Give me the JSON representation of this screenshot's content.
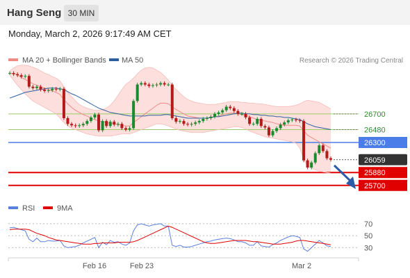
{
  "header": {
    "title": "Hang Seng",
    "timeframe": "30 MIN",
    "datetime": "Monday, March 2, 2026 9:17:49 AM CET"
  },
  "legend": {
    "bollinger": "MA 20 + Bollinger Bands",
    "ma50": "MA 50",
    "credit": "Research © 2026 Trading Central"
  },
  "rsi_legend": {
    "rsi": "RSI",
    "ma": "9MA"
  },
  "colors": {
    "bollinger": "#f08a85",
    "band_fill": "#fde0dd",
    "ma50": "#2e5e9e",
    "up": "#1b8a2e",
    "down": "#b31b1b",
    "resistance": "#9ccc65",
    "pivot": "#4a7de8",
    "support": "#e00000",
    "current": "#333333",
    "arrow": "#2b5aa8"
  },
  "chart_data": [
    {
      "type": "line",
      "title": "Hang Seng",
      "timeframe": "30 MIN",
      "ylim": [
        25620,
        27320
      ],
      "x_ticks": [
        "Feb 16",
        "Feb 23",
        "Mar 2"
      ],
      "levels": [
        {
          "value": 26700,
          "label": "26700",
          "kind": "resistance"
        },
        {
          "value": 26480,
          "label": "26480",
          "kind": "resistance"
        },
        {
          "value": 26300,
          "label": "26300",
          "kind": "pivot"
        },
        {
          "value": 26059,
          "label": "26059",
          "kind": "current"
        },
        {
          "value": 25880,
          "label": "25880",
          "kind": "support"
        },
        {
          "value": 25700,
          "label": "25700",
          "kind": "support"
        }
      ],
      "price_close": [
        27270,
        27255,
        27240,
        27220,
        27230,
        27080,
        27060,
        27080,
        27040,
        27020,
        27030,
        27050,
        27040,
        27050,
        26640,
        26560,
        26540,
        26530,
        26540,
        26560,
        26600,
        26650,
        26690,
        26470,
        26600,
        26530,
        26590,
        26550,
        26560,
        26500,
        26480,
        26500,
        26880,
        27110,
        27130,
        27110,
        27090,
        27100,
        27110,
        27130,
        27110,
        27110,
        26640,
        26590,
        26600,
        26560,
        26550,
        26560,
        26580,
        26600,
        26630,
        26640,
        26660,
        26700,
        26720,
        26750,
        26800,
        26780,
        26740,
        26700,
        26700,
        26650,
        26560,
        26560,
        26630,
        26530,
        26510,
        26400,
        26460,
        26500,
        26550,
        26580,
        26610,
        26620,
        26610,
        26600,
        26050,
        25950,
        26020,
        26150,
        26260,
        26180,
        26080,
        26059
      ],
      "ma20": [
        27270,
        27260,
        27245,
        27210,
        27180,
        27150,
        27120,
        27100,
        27080,
        27060,
        27040,
        27020,
        27000,
        26970,
        26900,
        26840,
        26790,
        26750,
        26720,
        26690,
        26670,
        26640,
        26620,
        26600,
        26590,
        26580,
        26570,
        26560,
        26550,
        26540,
        26530,
        26530,
        26580,
        26620,
        26660,
        26700,
        26740,
        26780,
        26820,
        26850,
        26850,
        26840,
        26800,
        26760,
        26730,
        26700,
        26670,
        26660,
        26650,
        26640,
        26640,
        26640,
        26650,
        26660,
        26670,
        26690,
        26700,
        26710,
        26710,
        26700,
        26690,
        26680,
        26660,
        26640,
        26620,
        26610,
        26600,
        26590,
        26580,
        26560,
        26550,
        26540,
        26540,
        26540,
        26540,
        26530,
        26470,
        26400,
        26370,
        26340,
        26310,
        26280,
        26250,
        26220
      ],
      "bb_upper": [
        27300,
        27340,
        27370,
        27380,
        27380,
        27370,
        27350,
        27330,
        27300,
        27270,
        27250,
        27220,
        27200,
        27160,
        27080,
        27000,
        26940,
        26880,
        26830,
        26800,
        26780,
        26760,
        26750,
        26750,
        26760,
        26780,
        26820,
        26880,
        26960,
        27040,
        27110,
        27150,
        27200,
        27260,
        27310,
        27340,
        27350,
        27340,
        27310,
        27280,
        27230,
        27170,
        27100,
        27040,
        26990,
        26940,
        26900,
        26880,
        26860,
        26850,
        26840,
        26830,
        26830,
        26830,
        26840,
        26850,
        26860,
        26870,
        26870,
        26870,
        26860,
        26860,
        26850,
        26850,
        26840,
        26840,
        26830,
        26820,
        26810,
        26800,
        26800,
        26800,
        26800,
        26810,
        26820,
        26840,
        26870,
        26890,
        26880,
        26870,
        26860,
        26830,
        26800,
        26770
      ],
      "bb_lower": [
        27240,
        27170,
        27100,
        27040,
        26980,
        26930,
        26880,
        26850,
        26820,
        26790,
        26760,
        26730,
        26700,
        26640,
        26580,
        26530,
        26500,
        26480,
        26460,
        26440,
        26420,
        26410,
        26400,
        26390,
        26390,
        26390,
        26390,
        26400,
        26410,
        26420,
        26420,
        26420,
        26440,
        26460,
        26480,
        26500,
        26520,
        26540,
        26560,
        26560,
        26550,
        26530,
        26510,
        26490,
        26470,
        26460,
        26450,
        26440,
        26440,
        26440,
        26440,
        26450,
        26460,
        26470,
        26480,
        26490,
        26500,
        26510,
        26520,
        26520,
        26510,
        26490,
        26460,
        26440,
        26420,
        26400,
        26380,
        26370,
        26360,
        26350,
        26340,
        26330,
        26320,
        26310,
        26290,
        26220,
        26070,
        25970,
        25940,
        25920,
        25900,
        25890,
        25880,
        25870
      ],
      "ma50": [
        26920,
        26940,
        26960,
        26980,
        27000,
        27010,
        27020,
        27030,
        27040,
        27050,
        27060,
        27060,
        27060,
        27050,
        27040,
        27010,
        26980,
        26960,
        26930,
        26900,
        26870,
        26840,
        26810,
        26780,
        26760,
        26740,
        26720,
        26710,
        26700,
        26690,
        26680,
        26670,
        26670,
        26670,
        26670,
        26670,
        26680,
        26680,
        26680,
        26680,
        26690,
        26690,
        26680,
        26670,
        26660,
        26650,
        26640,
        26640,
        26640,
        26640,
        26640,
        26640,
        26650,
        26660,
        26660,
        26670,
        26680,
        26690,
        26700,
        26710,
        26710,
        26700,
        26700,
        26690,
        26690,
        26680,
        26680,
        26670,
        26670,
        26660,
        26660,
        26650,
        26650,
        26640,
        26630,
        26620,
        26590,
        26560,
        26540,
        26520,
        26510,
        26500,
        26490,
        26480
      ]
    },
    {
      "type": "line",
      "title": "RSI",
      "ylim": [
        20,
        78
      ],
      "y_ticks": [
        70,
        50,
        30
      ],
      "rsi": [
        63,
        64,
        62,
        60,
        58,
        44,
        40,
        46,
        40,
        40,
        42,
        41,
        41,
        42,
        33,
        30,
        31,
        32,
        34,
        38,
        41,
        44,
        47,
        30,
        39,
        35,
        42,
        39,
        40,
        36,
        34,
        38,
        58,
        68,
        70,
        68,
        66,
        68,
        69,
        70,
        66,
        66,
        34,
        32,
        34,
        31,
        31,
        32,
        34,
        36,
        38,
        40,
        41,
        43,
        44,
        45,
        46,
        45,
        43,
        40,
        40,
        38,
        34,
        34,
        40,
        33,
        32,
        31,
        35,
        38,
        42,
        45,
        48,
        50,
        49,
        47,
        28,
        24,
        30,
        36,
        42,
        38,
        33,
        32
      ],
      "ma9": [
        60,
        61,
        61,
        61,
        61,
        60,
        57,
        54,
        52,
        50,
        47,
        45,
        43,
        42,
        41,
        40,
        39,
        38,
        37,
        36,
        36,
        36,
        37,
        37,
        38,
        38,
        38,
        38,
        39,
        39,
        39,
        39,
        40,
        42,
        45,
        48,
        51,
        54,
        57,
        60,
        63,
        66,
        64,
        61,
        58,
        55,
        52,
        49,
        46,
        43,
        40,
        38,
        37,
        37,
        38,
        39,
        40,
        41,
        42,
        42,
        42,
        42,
        41,
        40,
        40,
        39,
        38,
        37,
        36,
        36,
        36,
        37,
        38,
        39,
        41,
        42,
        42,
        41,
        40,
        39,
        38,
        37,
        36,
        35
      ]
    }
  ]
}
